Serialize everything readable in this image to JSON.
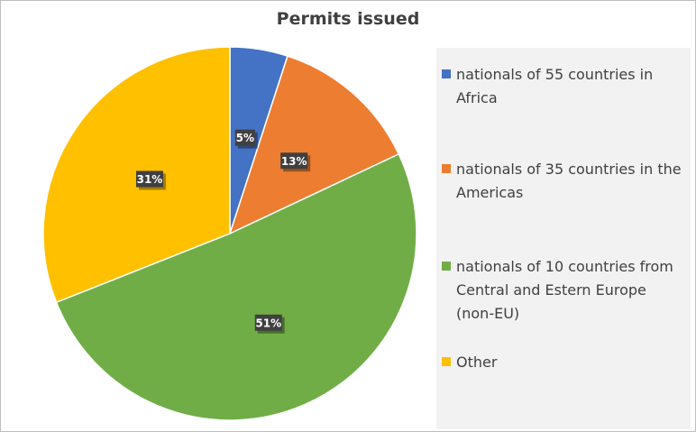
{
  "chart_data": {
    "type": "pie",
    "title": "Permits issued",
    "slices": [
      {
        "label": "nationals of 55 countries in Africa",
        "value": 5,
        "data_label": "5%",
        "color": "#4472C4"
      },
      {
        "label": "nationals of  35 countries in the Americas",
        "value": 13,
        "data_label": "13%",
        "color": "#ED7D31"
      },
      {
        "label": "nationals of 10 countries from Central and Estern Europe (non-EU)",
        "value": 51,
        "data_label": "51%",
        "color": "#70AD47"
      },
      {
        "label": "Other",
        "value": 31,
        "data_label": "31%",
        "color": "#FFC000"
      }
    ],
    "legend_position": "right",
    "start_angle": "top, clockwise"
  }
}
